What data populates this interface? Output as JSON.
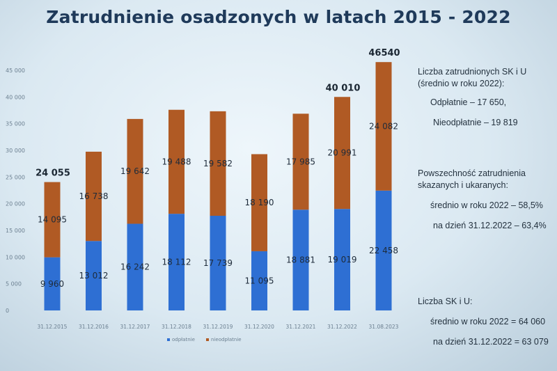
{
  "title": "Zatrudnienie osadzonych w latach 2015 - 2022",
  "chart_data": {
    "type": "bar",
    "stacked": true,
    "categories": [
      "31.12.2015",
      "31.12.2016",
      "31.12.2017",
      "31.12.2018",
      "31.12.2019",
      "31.12.2020",
      "31.12.2021",
      "31.12.2022",
      "31.08.2023"
    ],
    "series": [
      {
        "name": "odpłatnie",
        "color": "#2e6fd3",
        "values": [
          9960,
          13012,
          16242,
          18112,
          17739,
          11095,
          18881,
          19019,
          22458
        ]
      },
      {
        "name": "nieodpłatnie",
        "color": "#b05a24",
        "values": [
          14095,
          16738,
          19642,
          19488,
          19582,
          18190,
          17985,
          20991,
          24082
        ]
      }
    ],
    "segment_labels": {
      "odpłatnie": [
        "9 960",
        "13 012",
        "16 242",
        "18 112",
        "17 739",
        "11 095",
        "18 881",
        "19 019",
        "22 458"
      ],
      "nieodpłatnie": [
        "14 095",
        "16 738",
        "19 642",
        "19 488",
        "19 582",
        "18 190",
        "17 985",
        "20 991",
        "24 082"
      ]
    },
    "total_labels": [
      "24 055",
      "",
      "",
      "",
      "",
      "",
      "",
      "40 010",
      "46540"
    ],
    "yticks": [
      "0",
      "5 000",
      "10 000",
      "15 000",
      "20 000",
      "25 000",
      "30 000",
      "35 000",
      "40 000",
      "45 000"
    ],
    "ylim": [
      0,
      45000
    ],
    "legend": [
      "odpłatnie",
      "nieodpłatnie"
    ]
  },
  "side_panel": {
    "block1_title": "Liczba zatrudnionych SK i U (średnio w roku 2022):",
    "block1_item1": "Odpłatnie – 17 650,",
    "block1_item2": "Nieodpłatnie – 19 819",
    "block2_title": "Powszechność zatrudnienia skazanych i ukaranych:",
    "block2_item1": "średnio w roku 2022 – 58,5%",
    "block2_item2": "na dzień 31.12.2022 – 63,4%",
    "block3_title": "Liczba SK i U:",
    "block3_item1": "średnio w roku 2022 = 64 060",
    "block3_item2": "na dzień 31.12.2022 = 63 079"
  }
}
